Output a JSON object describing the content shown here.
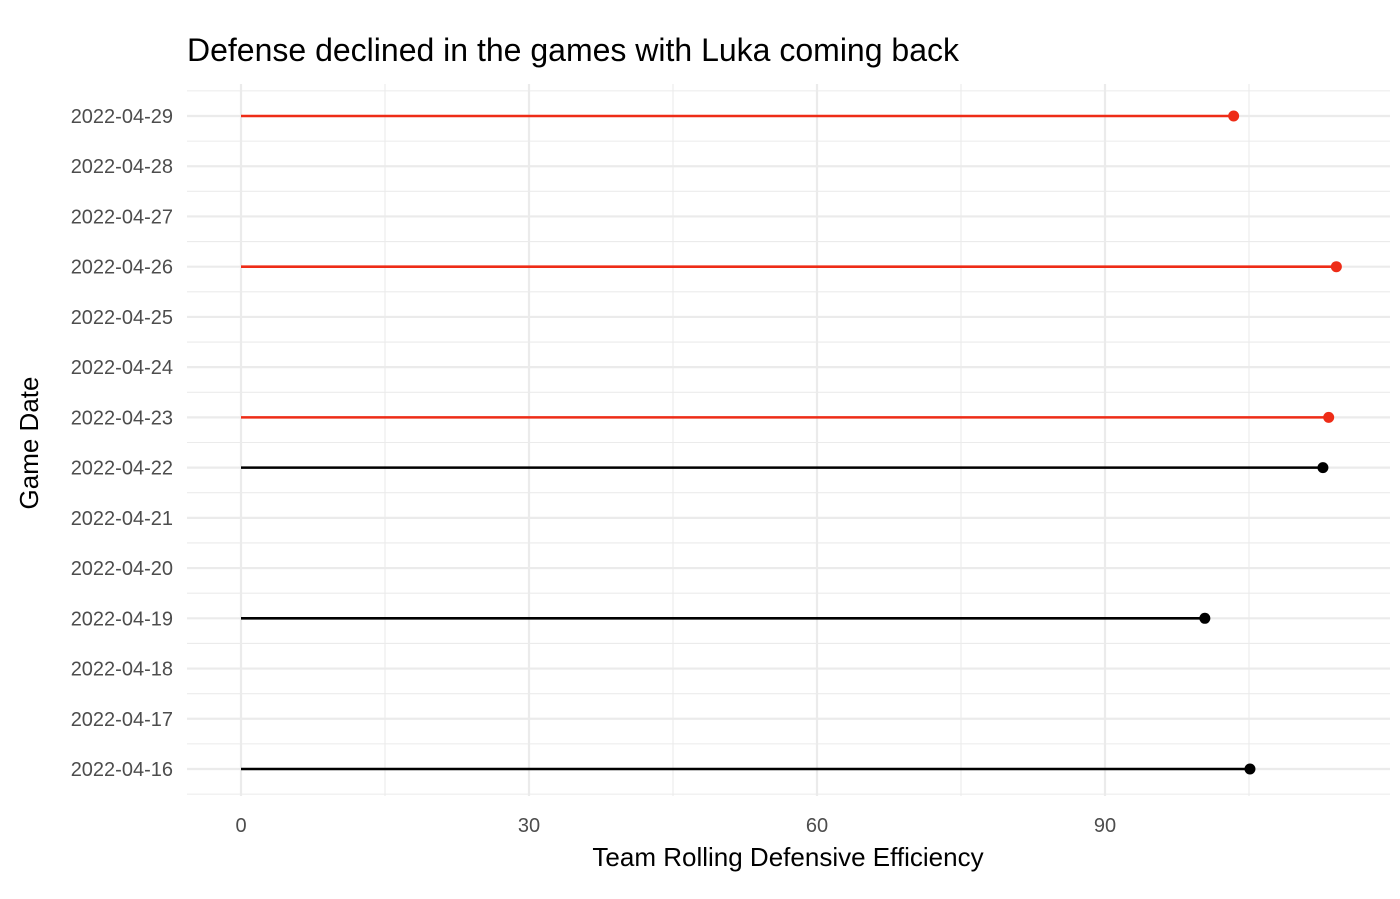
{
  "chart_data": {
    "type": "lollipop",
    "title": "Defense declined in the games with Luka coming back",
    "xlabel": "Team Rolling Defensive Efficiency",
    "ylabel": "Game Date",
    "xlim": [
      -3.75,
      114.2
    ],
    "x_ticks": [
      0,
      30,
      60,
      90
    ],
    "x_tick_labels": [
      "0",
      "30",
      "60",
      "90"
    ],
    "categories": [
      "2022-04-16",
      "2022-04-17",
      "2022-04-18",
      "2022-04-19",
      "2022-04-20",
      "2022-04-21",
      "2022-04-22",
      "2022-04-23",
      "2022-04-24",
      "2022-04-25",
      "2022-04-26",
      "2022-04-27",
      "2022-04-28",
      "2022-04-29"
    ],
    "points": [
      {
        "date": "2022-04-16",
        "value": 105.1,
        "color": "#000000"
      },
      {
        "date": "2022-04-19",
        "value": 100.4,
        "color": "#000000"
      },
      {
        "date": "2022-04-22",
        "value": 112.7,
        "color": "#000000"
      },
      {
        "date": "2022-04-23",
        "value": 113.3,
        "color": "#ee2c17"
      },
      {
        "date": "2022-04-26",
        "value": 114.1,
        "color": "#ee2c17"
      },
      {
        "date": "2022-04-29",
        "value": 103.4,
        "color": "#ee2c17"
      }
    ],
    "grid": true,
    "colors": {
      "returning": "#ee2c17",
      "default": "#000000",
      "grid": "#ebebeb"
    }
  }
}
